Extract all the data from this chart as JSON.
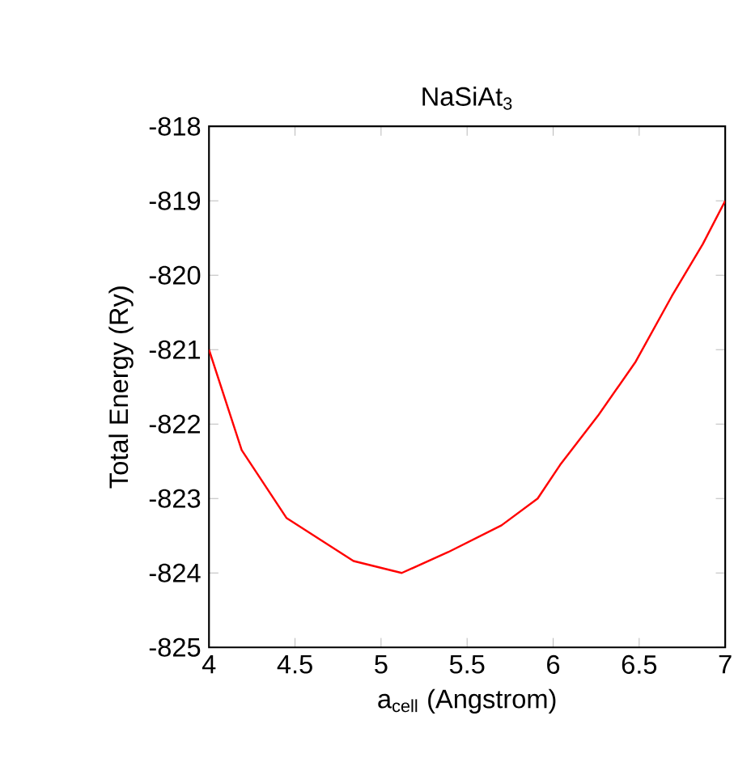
{
  "chart_data": {
    "type": "line",
    "title": "NaSiAt$_{3}$",
    "xlabel": "a$_{cell}$ (Angstrom)",
    "ylabel": "Total Energy (Ry)",
    "xlim": [
      4,
      7
    ],
    "xticks": [
      4,
      4.5,
      5,
      5.5,
      6,
      6.5,
      7
    ],
    "ylim": [
      -825,
      -818
    ],
    "yticks": [
      -825,
      -824,
      -823,
      -822,
      -821,
      -820,
      -819,
      -818
    ],
    "marker": "none",
    "line_style": "solid",
    "series": [
      {
        "color": "#ff0000",
        "x": [
          4,
          4.19,
          4.45,
          4.84,
          5.12,
          5.39,
          5.7,
          5.91,
          6.04,
          6.26,
          6.48,
          6.69,
          6.87,
          7
        ],
        "values": [
          -821.0,
          -822.35,
          -823.26,
          -823.84,
          -824.0,
          -823.72,
          -823.36,
          -823.0,
          -822.55,
          -821.89,
          -821.16,
          -820.28,
          -819.58,
          -819.0
        ]
      }
    ]
  }
}
